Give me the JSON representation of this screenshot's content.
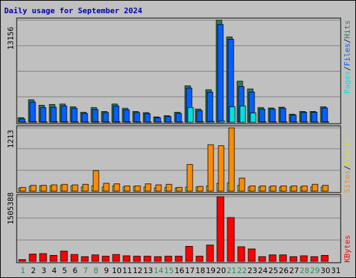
{
  "title": "Daily usage for September 2024",
  "panels": {
    "top": {
      "max_label": "13156",
      "legend": [
        "Pages",
        "/",
        "Files",
        "/",
        "Hits"
      ],
      "legend_colors": [
        "#00e0e0",
        "#202020",
        "#0060ff",
        "#202020",
        "#2e7d5a"
      ]
    },
    "middle": {
      "max_label": "1213",
      "legend": [
        "Sites",
        "/",
        "Visits"
      ],
      "legend_colors": [
        "#ff8c00",
        "#202020",
        "#e0e000"
      ]
    },
    "bottom": {
      "max_label": "1505388",
      "legend": [
        "KBytes"
      ],
      "legend_colors": [
        "#ff0000"
      ]
    }
  },
  "colors": {
    "hits": "#2e7d5a",
    "files": "#0060ff",
    "pages": "#00e0e0",
    "visits": "#e0e000",
    "sites": "#ff8c00",
    "kbytes": "#ff0000",
    "weekend_label": "#2e8b57",
    "weekday_label": "#000000"
  },
  "chart_data": {
    "type": "bar",
    "categories": [
      "1",
      "2",
      "3",
      "4",
      "5",
      "6",
      "7",
      "8",
      "9",
      "10",
      "11",
      "12",
      "13",
      "14",
      "15",
      "16",
      "17",
      "18",
      "19",
      "20",
      "21",
      "22",
      "23",
      "24",
      "25",
      "26",
      "27",
      "28",
      "29",
      "30",
      "31"
    ],
    "weekend_days": [
      1,
      7,
      8,
      14,
      15,
      21,
      22,
      28,
      29
    ],
    "series": [
      {
        "name": "Hits",
        "ylim": [
          0,
          13156
        ],
        "values": [
          600,
          2900,
          2200,
          2300,
          2350,
          2000,
          1300,
          1900,
          1400,
          2350,
          1800,
          1400,
          1250,
          700,
          850,
          1300,
          4700,
          1700,
          4200,
          13156,
          11000,
          5300,
          4300,
          1900,
          1850,
          1950,
          1050,
          1400,
          1400,
          2000,
          0
        ]
      },
      {
        "name": "Files",
        "ylim": [
          0,
          13156
        ],
        "values": [
          450,
          2600,
          1900,
          1950,
          2100,
          1800,
          1150,
          1650,
          1250,
          2100,
          1600,
          1250,
          1100,
          600,
          750,
          1150,
          4400,
          1500,
          3900,
          12600,
          10700,
          4600,
          3900,
          1700,
          1700,
          1800,
          950,
          1300,
          1300,
          1850,
          0
        ]
      },
      {
        "name": "Pages",
        "ylim": [
          0,
          13156
        ],
        "values": [
          40,
          80,
          60,
          70,
          70,
          60,
          40,
          60,
          50,
          70,
          60,
          50,
          40,
          30,
          30,
          50,
          1900,
          80,
          120,
          180,
          2000,
          2100,
          1200,
          60,
          50,
          60,
          40,
          40,
          40,
          60,
          0
        ]
      },
      {
        "name": "Visits",
        "ylim": [
          0,
          1213
        ],
        "values": [
          60,
          90,
          100,
          100,
          110,
          100,
          80,
          100,
          80,
          100,
          80,
          90,
          80,
          60,
          70,
          60,
          80,
          80,
          100,
          150,
          160,
          110,
          80,
          80,
          80,
          80,
          80,
          80,
          80,
          80,
          0
        ]
      },
      {
        "name": "Sites",
        "ylim": [
          0,
          1213
        ],
        "values": [
          70,
          110,
          110,
          120,
          130,
          120,
          130,
          390,
          150,
          140,
          100,
          100,
          140,
          120,
          130,
          70,
          510,
          90,
          890,
          870,
          1213,
          250,
          100,
          100,
          100,
          100,
          100,
          100,
          130,
          110,
          0
        ]
      },
      {
        "name": "KBytes",
        "ylim": [
          0,
          1505388
        ],
        "values": [
          40000,
          170000,
          180000,
          140000,
          240000,
          160000,
          110000,
          150000,
          120000,
          160000,
          130000,
          120000,
          120000,
          110000,
          120000,
          120000,
          350000,
          120000,
          380000,
          1505388,
          1020000,
          340000,
          290000,
          110000,
          150000,
          150000,
          110000,
          130000,
          110000,
          140000,
          0
        ]
      }
    ]
  }
}
